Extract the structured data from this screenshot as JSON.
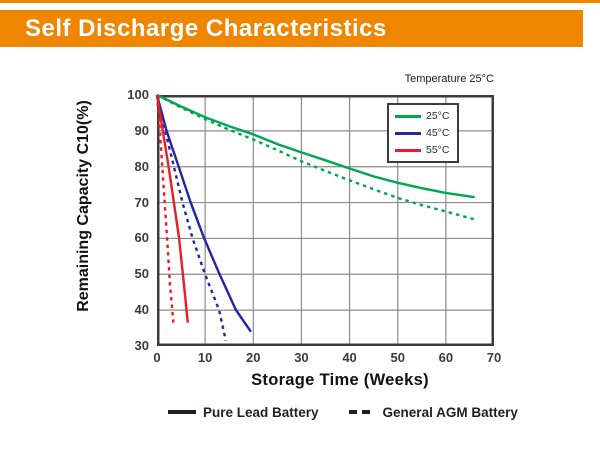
{
  "header": {
    "title": "Self Discharge Characteristics",
    "accent_color": "#F08500"
  },
  "chart_data": {
    "type": "line",
    "title": "Self Discharge Characteristics",
    "annotation": "Temperature 25°C",
    "xlabel": "Storage Time (Weeks)",
    "ylabel": "Remaining Capacity C10(%)",
    "xlim": [
      0,
      70
    ],
    "ylim": [
      30,
      100
    ],
    "xticks": [
      0,
      10,
      20,
      30,
      40,
      50,
      60,
      70
    ],
    "yticks": [
      100,
      90,
      80,
      70,
      60,
      50,
      40,
      30
    ],
    "grid": true,
    "grid_color": "#8C8C8C",
    "axis_color": "#3C3C3C",
    "legend_box": {
      "position": "top-right",
      "entries": [
        {
          "label": "25°C",
          "color": "#00A651"
        },
        {
          "label": "45°C",
          "color": "#2226A0"
        },
        {
          "label": "55°C",
          "color": "#ED1C24"
        }
      ]
    },
    "line_style_legend": [
      {
        "label": "Pure Lead Battery",
        "style": "solid"
      },
      {
        "label": "General AGM Battery",
        "style": "dashed"
      }
    ],
    "series": [
      {
        "name": "25C Pure Lead Battery",
        "temperature": "25°C",
        "color": "#00A651",
        "style": "solid",
        "x": [
          0,
          5,
          10,
          15,
          20,
          25,
          30,
          35,
          40,
          45,
          50,
          55,
          60,
          66
        ],
        "y": [
          100,
          96.8,
          93.8,
          91.3,
          89,
          86.3,
          84,
          81.8,
          79.5,
          77.3,
          75.5,
          74,
          72.7,
          71.5
        ]
      },
      {
        "name": "25C General AGM Battery",
        "temperature": "25°C",
        "color": "#00A651",
        "style": "dashed",
        "x": [
          0,
          5,
          10,
          15,
          20,
          25,
          30,
          35,
          40,
          45,
          50,
          55,
          60,
          66
        ],
        "y": [
          100,
          96.5,
          93.3,
          90.3,
          87.6,
          84.6,
          81.5,
          78.8,
          76.2,
          73.7,
          71.3,
          69.3,
          67.5,
          65.3
        ]
      },
      {
        "name": "45C Pure Lead Battery",
        "temperature": "45°C",
        "color": "#2226A0",
        "style": "solid",
        "x": [
          0,
          2,
          4.5,
          7,
          9.8,
          13,
          16.4,
          19.5
        ],
        "y": [
          100,
          90,
          80,
          70,
          60,
          50,
          40,
          34
        ]
      },
      {
        "name": "45C General AGM Battery",
        "temperature": "45°C",
        "color": "#2226A0",
        "style": "dashed",
        "x": [
          0,
          1.7,
          3.5,
          5.3,
          7.4,
          10,
          12.9,
          14.3
        ],
        "y": [
          100,
          90,
          80,
          70,
          60,
          50,
          40,
          31.5
        ]
      },
      {
        "name": "55C Pure Lead Battery",
        "temperature": "55°C",
        "color": "#ED1C24",
        "style": "solid",
        "x": [
          0,
          1.2,
          2.4,
          3.5,
          4.6,
          5.6,
          6.4
        ],
        "y": [
          100,
          90,
          80,
          70,
          60,
          47,
          36.5
        ]
      },
      {
        "name": "55C General AGM Battery",
        "temperature": "55°C",
        "color": "#ED1C24",
        "style": "dashed",
        "x": [
          0,
          0.6,
          1.1,
          1.6,
          2.1,
          2.7,
          3.4
        ],
        "y": [
          100,
          90,
          80,
          70,
          60,
          47,
          36.5
        ]
      }
    ]
  }
}
